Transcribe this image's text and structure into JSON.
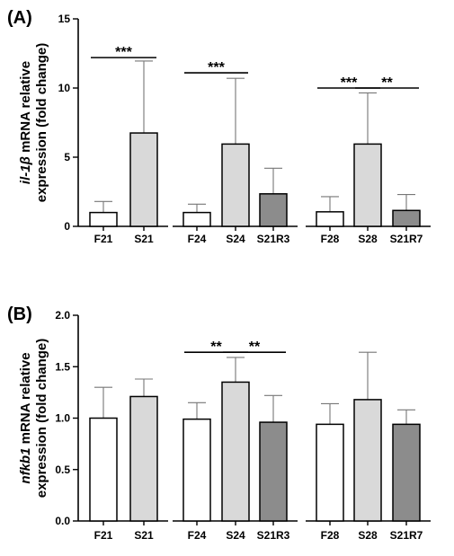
{
  "chart_data": [
    {
      "panel": "(A)",
      "type": "bar",
      "ylabel_gene": "il-1β",
      "ylabel_rest": " mRNA relative",
      "ylabel_line2": "expression (fold change)",
      "ylim": [
        0,
        15
      ],
      "yticks": [
        0,
        5,
        10,
        15
      ],
      "ytick_labels": [
        "0",
        "5",
        "10",
        "15"
      ],
      "groups": [
        {
          "bars": [
            {
              "category": "F21",
              "value": 1.0,
              "error": 0.8,
              "fill": "#ffffff"
            },
            {
              "category": "S21",
              "value": 6.75,
              "error": 5.2,
              "fill": "#d9d9d9"
            }
          ]
        },
        {
          "bars": [
            {
              "category": "F24",
              "value": 1.0,
              "error": 0.6,
              "fill": "#ffffff"
            },
            {
              "category": "S24",
              "value": 5.95,
              "error": 4.75,
              "fill": "#d9d9d9"
            },
            {
              "category": "S21R3",
              "value": 2.35,
              "error": 1.85,
              "fill": "#8c8c8c"
            }
          ]
        },
        {
          "bars": [
            {
              "category": "F28",
              "value": 1.05,
              "error": 1.1,
              "fill": "#ffffff"
            },
            {
              "category": "S28",
              "value": 5.95,
              "error": 3.7,
              "fill": "#d9d9d9"
            },
            {
              "category": "S21R7",
              "value": 1.15,
              "error": 1.15,
              "fill": "#8c8c8c"
            }
          ]
        }
      ],
      "significance": [
        {
          "from": "F21",
          "to": "S21",
          "label": "***",
          "y": 12.2
        },
        {
          "from": "F24",
          "to": "S24",
          "label": "***",
          "y": 11.1
        },
        {
          "from": "F28",
          "to": "S28",
          "label": "***",
          "y": 10.0
        },
        {
          "from": "S28",
          "to": "S21R7",
          "label": "**",
          "y": 10.0
        }
      ]
    },
    {
      "panel": "(B)",
      "type": "bar",
      "ylabel_gene": "nfkb1",
      "ylabel_rest": " mRNA relative",
      "ylabel_line2": "expression (fold change)",
      "ylim": [
        0,
        2.0
      ],
      "yticks": [
        0,
        0.5,
        1.0,
        1.5,
        2.0
      ],
      "ytick_labels": [
        "0.0",
        "0.5",
        "1.0",
        "1.5",
        "2.0"
      ],
      "groups": [
        {
          "bars": [
            {
              "category": "F21",
              "value": 1.0,
              "error": 0.3,
              "fill": "#ffffff"
            },
            {
              "category": "S21",
              "value": 1.21,
              "error": 0.17,
              "fill": "#d9d9d9"
            }
          ]
        },
        {
          "bars": [
            {
              "category": "F24",
              "value": 0.99,
              "error": 0.16,
              "fill": "#ffffff"
            },
            {
              "category": "S24",
              "value": 1.35,
              "error": 0.24,
              "fill": "#d9d9d9"
            },
            {
              "category": "S21R3",
              "value": 0.96,
              "error": 0.26,
              "fill": "#8c8c8c"
            }
          ]
        },
        {
          "bars": [
            {
              "category": "F28",
              "value": 0.94,
              "error": 0.2,
              "fill": "#ffffff"
            },
            {
              "category": "S28",
              "value": 1.18,
              "error": 0.46,
              "fill": "#d9d9d9"
            },
            {
              "category": "S21R7",
              "value": 0.94,
              "error": 0.14,
              "fill": "#8c8c8c"
            }
          ]
        }
      ],
      "significance": [
        {
          "from": "F24",
          "to": "S24",
          "label": "**",
          "y": 1.64
        },
        {
          "from": "S24",
          "to": "S21R3",
          "label": "**",
          "y": 1.64
        }
      ]
    }
  ]
}
